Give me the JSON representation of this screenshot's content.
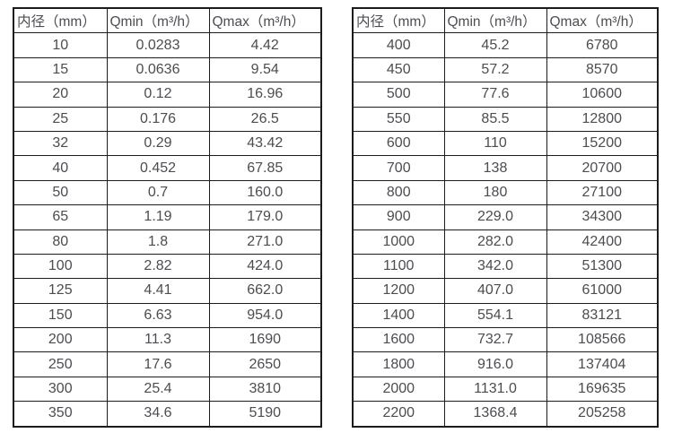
{
  "colors": {
    "background": "#ffffff",
    "border": "#1c1c1c",
    "text": "#4c4c52"
  },
  "chart_data": [
    {
      "type": "table",
      "title": "",
      "columns": [
        "内径（mm）",
        "Qmin（m³/h）",
        "Qmax（m³/h）"
      ],
      "rows": [
        [
          "10",
          "0.0283",
          "4.42"
        ],
        [
          "15",
          "0.0636",
          "9.54"
        ],
        [
          "20",
          "0.12",
          "16.96"
        ],
        [
          "25",
          "0.176",
          "26.5"
        ],
        [
          "32",
          "0.29",
          "43.42"
        ],
        [
          "40",
          "0.452",
          "67.85"
        ],
        [
          "50",
          "0.7",
          "160.0"
        ],
        [
          "65",
          "1.19",
          "179.0"
        ],
        [
          "80",
          "1.8",
          "271.0"
        ],
        [
          "100",
          "2.82",
          "424.0"
        ],
        [
          "125",
          "4.41",
          "662.0"
        ],
        [
          "150",
          "6.63",
          "954.0"
        ],
        [
          "200",
          "11.3",
          "1690"
        ],
        [
          "250",
          "17.6",
          "2650"
        ],
        [
          "300",
          "25.4",
          "3810"
        ],
        [
          "350",
          "34.6",
          "5190"
        ]
      ]
    },
    {
      "type": "table",
      "title": "",
      "columns": [
        "内径（mm）",
        "Qmin（m³/h）",
        "Qmax（m³/h）"
      ],
      "rows": [
        [
          "400",
          "45.2",
          "6780"
        ],
        [
          "450",
          "57.2",
          "8570"
        ],
        [
          "500",
          "77.6",
          "10600"
        ],
        [
          "550",
          "85.5",
          "12800"
        ],
        [
          "600",
          "110",
          "15200"
        ],
        [
          "700",
          "138",
          "20700"
        ],
        [
          "800",
          "180",
          "27100"
        ],
        [
          "900",
          "229.0",
          "34300"
        ],
        [
          "1000",
          "282.0",
          "42400"
        ],
        [
          "1100",
          "342.0",
          "51300"
        ],
        [
          "1200",
          "407.0",
          "61000"
        ],
        [
          "1400",
          "554.1",
          "83121"
        ],
        [
          "1600",
          "732.7",
          "108566"
        ],
        [
          "1800",
          "916.0",
          "137404"
        ],
        [
          "2000",
          "1131.0",
          "169635"
        ],
        [
          "2200",
          "1368.4",
          "205258"
        ]
      ]
    }
  ]
}
